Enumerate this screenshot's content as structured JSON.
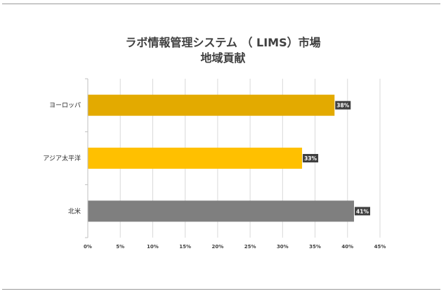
{
  "chart_data": {
    "type": "bar",
    "orientation": "horizontal",
    "title_lines": [
      "ラボ情報管理システム （ LIMS）市場",
      "地域貢献"
    ],
    "categories": [
      "ヨーロッパ",
      "アジア太平洋",
      "北米"
    ],
    "values": [
      38,
      33,
      41
    ],
    "data_labels": [
      "38%",
      "33%",
      "41%"
    ],
    "xlim": [
      0,
      45
    ],
    "x_ticks": [
      "0%",
      "5%",
      "10%",
      "15%",
      "20%",
      "25%",
      "30%",
      "35%",
      "40%",
      "45%"
    ],
    "grid": true,
    "legend": "none",
    "colors": [
      "#e3aa00",
      "#ffc000",
      "#7f7f7f"
    ]
  }
}
